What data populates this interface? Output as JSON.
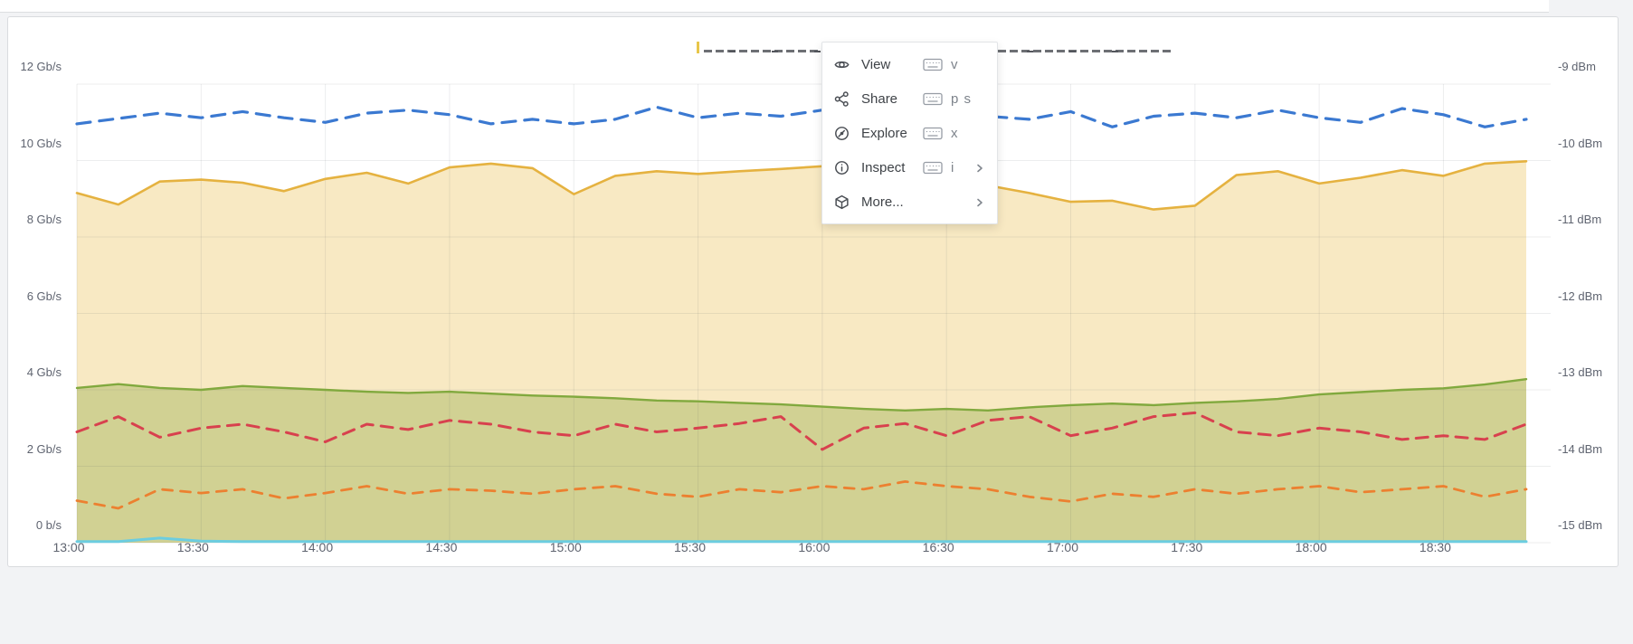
{
  "page": {
    "background": "#f2f3f5"
  },
  "panel": {
    "background": "#ffffff",
    "border_color": "#d9dbde",
    "title_clipped": true
  },
  "context_menu": {
    "items": [
      {
        "label": "View",
        "icon": "eye-icon",
        "keyboard_icon": true,
        "shortcut": "v",
        "submenu": false
      },
      {
        "label": "Share",
        "icon": "share-icon",
        "keyboard_icon": true,
        "shortcut": "p s",
        "submenu": false
      },
      {
        "label": "Explore",
        "icon": "compass-icon",
        "keyboard_icon": true,
        "shortcut": "x",
        "submenu": false
      },
      {
        "label": "Inspect",
        "icon": "info-circle-icon",
        "keyboard_icon": true,
        "shortcut": "i",
        "submenu": true
      },
      {
        "label": "More...",
        "icon": "cube-icon",
        "keyboard_icon": false,
        "shortcut": "",
        "submenu": true
      }
    ]
  },
  "chart_data": {
    "type": "line",
    "grid": true,
    "legend": false,
    "x": [
      "13:00",
      "13:10",
      "13:20",
      "13:30",
      "13:40",
      "13:50",
      "14:00",
      "14:10",
      "14:20",
      "14:30",
      "14:40",
      "14:50",
      "15:00",
      "15:10",
      "15:20",
      "15:30",
      "15:40",
      "15:50",
      "16:00",
      "16:10",
      "16:20",
      "16:30",
      "16:40",
      "16:50",
      "17:00",
      "17:10",
      "17:20",
      "17:30",
      "17:40",
      "17:50",
      "18:00",
      "18:10",
      "18:20",
      "18:30",
      "18:40",
      "18:50"
    ],
    "x_tick_labels": [
      "13:00",
      "13:30",
      "14:00",
      "14:30",
      "15:00",
      "15:30",
      "16:00",
      "16:30",
      "17:00",
      "17:30",
      "18:00",
      "18:30"
    ],
    "y_axis_left": {
      "unit": "Gb/s",
      "range": [
        0,
        12
      ],
      "ticks": [
        "12 Gb/s",
        "10 Gb/s",
        "8 Gb/s",
        "6 Gb/s",
        "4 Gb/s",
        "2 Gb/s",
        "0 b/s"
      ]
    },
    "y_axis_right": {
      "unit": "dBm",
      "range": [
        -15,
        -9
      ],
      "ticks": [
        "-9 dBm",
        "-10 dBm",
        "-11 dBm",
        "-12 dBm",
        "-13 dBm",
        "-14 dBm",
        "-15 dBm"
      ]
    },
    "series": [
      {
        "name": "yellow-area",
        "axis": "left",
        "style": "solid",
        "color": "#e5b240",
        "fill": "#f8e9c3",
        "values": [
          9.15,
          8.85,
          9.45,
          9.5,
          9.42,
          9.2,
          9.52,
          9.68,
          9.4,
          9.82,
          9.92,
          9.8,
          9.12,
          9.6,
          9.72,
          9.65,
          9.72,
          9.78,
          9.85,
          9.92,
          9.8,
          9.62,
          9.35,
          9.15,
          8.92,
          8.95,
          8.72,
          8.82,
          9.62,
          9.72,
          9.4,
          9.55,
          9.75,
          9.6,
          9.92,
          9.98
        ]
      },
      {
        "name": "green-area",
        "axis": "left",
        "style": "solid",
        "color": "#81a93e",
        "fill": "#d1d193",
        "values": [
          4.05,
          4.15,
          4.05,
          4.0,
          4.1,
          4.05,
          4.0,
          3.95,
          3.92,
          3.95,
          3.9,
          3.85,
          3.82,
          3.78,
          3.72,
          3.7,
          3.66,
          3.62,
          3.56,
          3.5,
          3.46,
          3.5,
          3.46,
          3.54,
          3.6,
          3.64,
          3.6,
          3.66,
          3.7,
          3.76,
          3.88,
          3.94,
          4.0,
          4.04,
          4.14,
          4.28
        ]
      },
      {
        "name": "cyan-line",
        "axis": "left",
        "style": "solid",
        "color": "#6ccde0",
        "fill": "none",
        "values": [
          0.03,
          0.03,
          0.12,
          0.04,
          0.03,
          0.03,
          0.03,
          0.03,
          0.03,
          0.03,
          0.03,
          0.03,
          0.03,
          0.03,
          0.03,
          0.03,
          0.03,
          0.03,
          0.03,
          0.03,
          0.03,
          0.03,
          0.03,
          0.03,
          0.03,
          0.03,
          0.03,
          0.03,
          0.03,
          0.03,
          0.03,
          0.03,
          0.03,
          0.03,
          0.03,
          0.03
        ]
      },
      {
        "name": "blue-dashed",
        "axis": "right",
        "style": "dashed",
        "color": "#3b79d1",
        "fill": "none",
        "values": [
          -9.52,
          -9.45,
          -9.38,
          -9.44,
          -9.36,
          -9.44,
          -9.5,
          -9.38,
          -9.34,
          -9.4,
          -9.52,
          -9.46,
          -9.52,
          -9.46,
          -9.3,
          -9.44,
          -9.38,
          -9.42,
          -9.34,
          -9.3,
          -9.44,
          -9.38,
          -9.42,
          -9.46,
          -9.36,
          -9.56,
          -9.42,
          -9.38,
          -9.44,
          -9.34,
          -9.44,
          -9.5,
          -9.32,
          -9.4,
          -9.56,
          -9.46
        ]
      },
      {
        "name": "red-dashed",
        "axis": "right",
        "style": "dashed",
        "color": "#d8414e",
        "fill": "none",
        "values": [
          -13.55,
          -13.35,
          -13.62,
          -13.5,
          -13.45,
          -13.55,
          -13.68,
          -13.45,
          -13.52,
          -13.4,
          -13.45,
          -13.55,
          -13.6,
          -13.45,
          -13.55,
          -13.5,
          -13.44,
          -13.35,
          -13.78,
          -13.5,
          -13.44,
          -13.6,
          -13.4,
          -13.35,
          -13.6,
          -13.5,
          -13.35,
          -13.3,
          -13.55,
          -13.6,
          -13.5,
          -13.55,
          -13.65,
          -13.6,
          -13.65,
          -13.45
        ]
      },
      {
        "name": "orange-dashed",
        "axis": "right",
        "style": "dashed",
        "color": "#ec8030",
        "fill": "none",
        "values": [
          -14.45,
          -14.55,
          -14.3,
          -14.35,
          -14.3,
          -14.42,
          -14.35,
          -14.26,
          -14.36,
          -14.3,
          -14.32,
          -14.36,
          -14.3,
          -14.26,
          -14.36,
          -14.4,
          -14.3,
          -14.34,
          -14.26,
          -14.3,
          -14.2,
          -14.26,
          -14.3,
          -14.4,
          -14.46,
          -14.36,
          -14.4,
          -14.3,
          -14.36,
          -14.3,
          -14.26,
          -14.34,
          -14.3,
          -14.26,
          -14.4,
          -14.3
        ]
      }
    ]
  }
}
